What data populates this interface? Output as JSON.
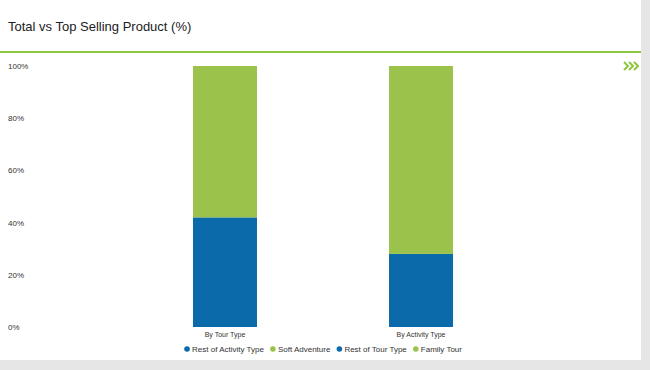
{
  "chart_data": {
    "type": "bar",
    "title": "Total vs Top Selling Product (%)",
    "categories": [
      "By Tour Type",
      "By Activity Type"
    ],
    "series": [
      {
        "name": "Rest of Activity Type",
        "color": "#0b6aa9",
        "values": [
          null,
          28
        ]
      },
      {
        "name": "Soft Adventure",
        "color": "#9bc24a",
        "values": [
          null,
          72
        ]
      },
      {
        "name": "Rest of Tour Type",
        "color": "#0b6aa9",
        "values": [
          42,
          null
        ]
      },
      {
        "name": "Family Tour",
        "color": "#9bc24a",
        "values": [
          58,
          null
        ]
      }
    ],
    "stacked": true,
    "grid": false,
    "legend": "bottom",
    "ylim": [
      0,
      100
    ],
    "yticks": [
      {
        "value": 0,
        "label": "0%"
      },
      {
        "value": 20,
        "label": "20%"
      },
      {
        "value": 40,
        "label": "40%"
      },
      {
        "value": 60,
        "label": "60%"
      },
      {
        "value": 80,
        "label": "80%"
      },
      {
        "value": 100,
        "label": "100%"
      }
    ]
  }
}
